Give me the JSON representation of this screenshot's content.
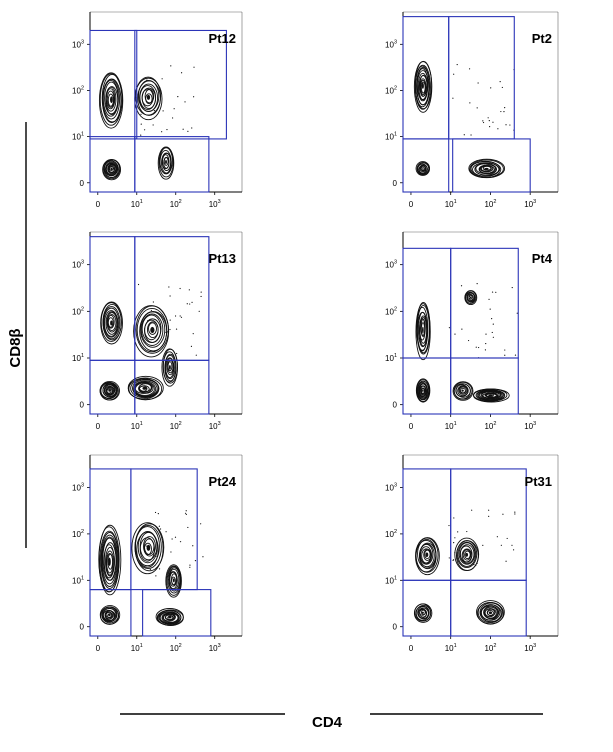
{
  "chart_data": {
    "type": "contour",
    "xlabel": "CD4",
    "ylabel": "CD8β",
    "tick_labels": [
      "0",
      "10",
      "10",
      "10"
    ],
    "tick_exponents": [
      "",
      "1",
      "2",
      "3"
    ],
    "scale": "log",
    "panels": [
      {
        "label": "Pt12",
        "vgate": 1.0,
        "hgate": 1.0,
        "gates": [
          [
            -0.2,
            1.0,
            0.95,
            3.3
          ],
          [
            0.95,
            3.3,
            0.95,
            3.3
          ],
          [
            -0.2,
            0.95,
            -0.2,
            1.0
          ],
          [
            0.95,
            2.85,
            -0.2,
            1.0
          ]
        ],
        "populations": [
          {
            "x": 0.35,
            "y": 0.3,
            "sx": 0.23,
            "sy": 0.22,
            "w": 1.0
          },
          {
            "x": 0.35,
            "y": 1.8,
            "sx": 0.3,
            "sy": 0.6,
            "w": 0.85
          },
          {
            "x": 1.3,
            "y": 1.85,
            "sx": 0.35,
            "sy": 0.45,
            "w": 0.6
          },
          {
            "x": 1.75,
            "y": 0.45,
            "sx": 0.2,
            "sy": 0.35,
            "w": 0.55
          }
        ]
      },
      {
        "label": "Pt2",
        "vgate": 0.95,
        "hgate": 1.0,
        "gates": [
          [
            -0.2,
            0.95,
            0.95,
            3.6
          ],
          [
            0.95,
            2.6,
            0.95,
            3.6
          ],
          [
            -0.2,
            0.95,
            -0.2,
            0.95
          ],
          [
            1.05,
            3.0,
            -0.2,
            0.95
          ]
        ],
        "populations": [
          {
            "x": 0.3,
            "y": 2.1,
            "sx": 0.22,
            "sy": 0.55,
            "w": 1.0
          },
          {
            "x": 0.3,
            "y": 0.3,
            "sx": 0.17,
            "sy": 0.15,
            "w": 0.45
          },
          {
            "x": 1.9,
            "y": 0.3,
            "sx": 0.45,
            "sy": 0.2,
            "w": 1.0
          }
        ]
      },
      {
        "label": "Pt13",
        "vgate": 1.0,
        "hgate": 0.95,
        "gates": [
          [
            -0.2,
            0.95,
            0.95,
            3.6
          ],
          [
            0.95,
            2.85,
            0.95,
            3.6
          ],
          [
            -0.2,
            0.95,
            -0.2,
            0.95
          ],
          [
            0.95,
            2.85,
            -0.2,
            0.95
          ]
        ],
        "populations": [
          {
            "x": 0.3,
            "y": 0.3,
            "sx": 0.25,
            "sy": 0.2,
            "w": 1.0
          },
          {
            "x": 0.35,
            "y": 1.75,
            "sx": 0.28,
            "sy": 0.45,
            "w": 0.8
          },
          {
            "x": 1.2,
            "y": 0.35,
            "sx": 0.45,
            "sy": 0.25,
            "w": 0.95
          },
          {
            "x": 1.4,
            "y": 1.6,
            "sx": 0.45,
            "sy": 0.55,
            "w": 0.7
          },
          {
            "x": 1.85,
            "y": 0.8,
            "sx": 0.2,
            "sy": 0.4,
            "w": 0.5
          }
        ]
      },
      {
        "label": "Pt4",
        "vgate": 1.0,
        "hgate": 1.0,
        "gates": [
          [
            -0.2,
            1.0,
            1.0,
            3.35
          ],
          [
            1.0,
            2.7,
            1.0,
            3.35
          ],
          [
            -0.2,
            1.0,
            -0.2,
            1.0
          ],
          [
            1.0,
            2.7,
            -0.2,
            1.0
          ]
        ],
        "populations": [
          {
            "x": 0.3,
            "y": 0.3,
            "sx": 0.17,
            "sy": 0.25,
            "w": 0.95
          },
          {
            "x": 0.3,
            "y": 1.6,
            "sx": 0.18,
            "sy": 0.6,
            "w": 0.8
          },
          {
            "x": 2.0,
            "y": 0.2,
            "sx": 0.45,
            "sy": 0.14,
            "w": 1.0
          },
          {
            "x": 1.5,
            "y": 2.3,
            "sx": 0.15,
            "sy": 0.15,
            "w": 0.35
          },
          {
            "x": 1.3,
            "y": 0.3,
            "sx": 0.25,
            "sy": 0.2,
            "w": 0.5
          }
        ]
      },
      {
        "label": "Pt24",
        "vgate": 0.85,
        "hgate": 0.8,
        "gates": [
          [
            -0.2,
            0.85,
            0.8,
            3.4
          ],
          [
            0.85,
            2.55,
            0.8,
            3.4
          ],
          [
            -0.2,
            0.85,
            -0.2,
            0.8
          ],
          [
            1.15,
            2.9,
            -0.2,
            0.8
          ]
        ],
        "populations": [
          {
            "x": 0.3,
            "y": 1.4,
            "sx": 0.28,
            "sy": 0.75,
            "w": 1.0
          },
          {
            "x": 0.3,
            "y": 0.25,
            "sx": 0.25,
            "sy": 0.2,
            "w": 0.85
          },
          {
            "x": 1.3,
            "y": 1.7,
            "sx": 0.4,
            "sy": 0.55,
            "w": 0.75
          },
          {
            "x": 1.95,
            "y": 1.0,
            "sx": 0.2,
            "sy": 0.35,
            "w": 0.55
          },
          {
            "x": 1.85,
            "y": 0.2,
            "sx": 0.35,
            "sy": 0.18,
            "w": 1.0
          }
        ]
      },
      {
        "label": "Pt31",
        "vgate": 1.0,
        "hgate": 1.0,
        "gates": [
          [
            -0.2,
            1.0,
            1.0,
            3.4
          ],
          [
            1.0,
            2.9,
            1.0,
            3.4
          ],
          [
            -0.2,
            1.0,
            -0.2,
            1.0
          ],
          [
            1.0,
            2.9,
            -0.2,
            1.0
          ]
        ],
        "populations": [
          {
            "x": 0.4,
            "y": 1.55,
            "sx": 0.3,
            "sy": 0.4,
            "w": 0.7
          },
          {
            "x": 0.3,
            "y": 0.3,
            "sx": 0.22,
            "sy": 0.2,
            "w": 0.65
          },
          {
            "x": 1.4,
            "y": 1.55,
            "sx": 0.3,
            "sy": 0.35,
            "w": 0.65
          },
          {
            "x": 2.0,
            "y": 0.3,
            "sx": 0.35,
            "sy": 0.25,
            "w": 1.0
          }
        ]
      }
    ]
  },
  "colors": {
    "gate": "#2b34b8",
    "contour": "#111111",
    "axis": "#000000"
  }
}
